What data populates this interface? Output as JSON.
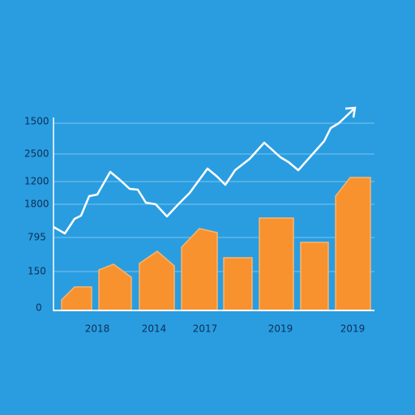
{
  "y_labels": [
    "1500",
    "2500",
    "1200",
    "1800",
    "795",
    "150",
    "0"
  ],
  "x_labels": [
    "2018",
    "2014",
    "2017",
    "2019",
    "2019"
  ]
}
